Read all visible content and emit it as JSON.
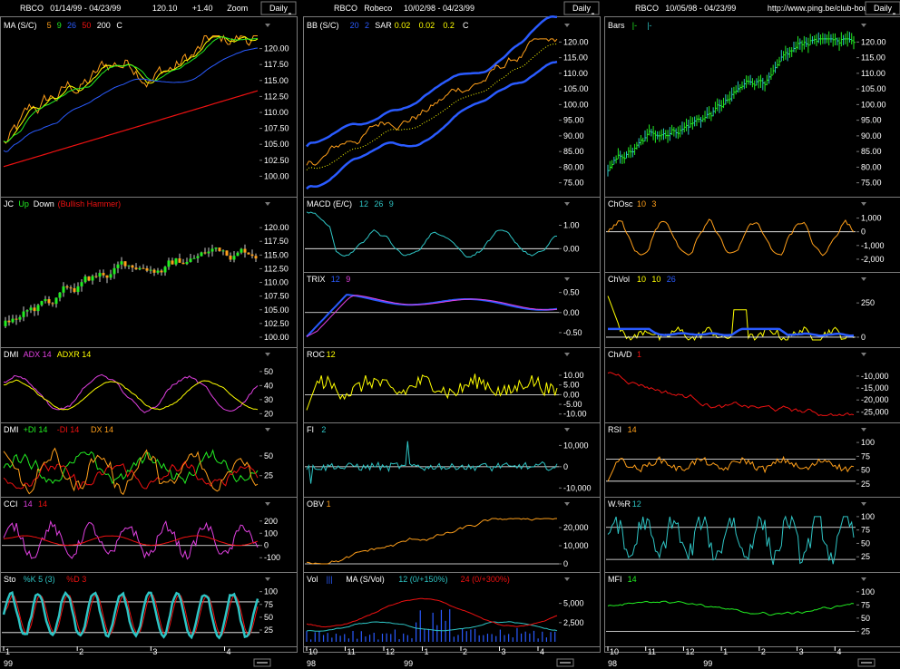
{
  "colors": {
    "bg": "#000000",
    "frame": "#7a7a7a",
    "text": "#ffffff",
    "orange": "#ff9f1a",
    "yellow": "#ffff00",
    "green": "#22ee22",
    "red": "#ee1111",
    "blue": "#2a5bff",
    "cyan": "#2ec4c4",
    "magenta": "#e040e0",
    "pink": "#ff55aa"
  },
  "columns": [
    {
      "header": {
        "symbol": "RBCO",
        "period": "01/14/99 - 04/23/99",
        "price": "120.10",
        "change": "+1.40",
        "mode": "Zoom",
        "interval": "Daily"
      },
      "date_labels": [
        "1",
        "2",
        "3",
        "4"
      ],
      "year_label": "99"
    },
    {
      "header": {
        "symbol": "RBCO",
        "name": "Robeco",
        "period": "10/02/98 - 04/23/99",
        "interval": "Daily"
      },
      "date_labels": [
        "10",
        "11",
        "12",
        "1",
        "2",
        "3",
        "4"
      ],
      "year_labels": [
        "98",
        "99"
      ]
    },
    {
      "header": {
        "symbol": "RBCO",
        "period": "10/05/98 - 04/23/99",
        "url": "http://www.ping.be/club-bourse",
        "interval": "Daily"
      },
      "date_labels": [
        "10",
        "11",
        "12",
        "1",
        "2",
        "3",
        "4"
      ],
      "year_labels": [
        "98",
        "99"
      ]
    }
  ],
  "chart_data": [
    {
      "type": "line",
      "panel": "MA (S/C)",
      "legend": [
        "MA (S/C)",
        "5",
        "9",
        "26",
        "50",
        "200",
        "C"
      ],
      "yticks": [
        "120.00",
        "117.50",
        "115.00",
        "112.50",
        "110.00",
        "107.50",
        "105.00",
        "102.50",
        "100.00"
      ],
      "ylim": [
        97.5,
        122.5
      ]
    },
    {
      "type": "line",
      "panel": "BB (S/C)",
      "legend": [
        "BB (S/C)",
        "20",
        "2",
        "SAR",
        "0.02",
        "0.02",
        "0.2",
        "C"
      ],
      "yticks": [
        "120.00",
        "115.00",
        "110.00",
        "105.00",
        "100.00",
        "95.00",
        "90.00",
        "85.00",
        "80.00",
        "75.00"
      ],
      "ylim": [
        72,
        123
      ]
    },
    {
      "type": "bar",
      "panel": "Bars",
      "legend": [
        "Bars",
        "|-",
        "|-"
      ],
      "yticks": [
        "120.00",
        "115.00",
        "110.00",
        "105.00",
        "100.00",
        "95.00",
        "90.00",
        "85.00",
        "80.00",
        "75.00"
      ],
      "ylim": [
        72,
        123
      ]
    },
    {
      "type": "bar",
      "panel": "JC",
      "legend": [
        "JC",
        "Up",
        "Down",
        "(Bullish Hammer)"
      ],
      "yticks": [
        "120.00",
        "117.50",
        "115.00",
        "112.50",
        "110.00",
        "107.50",
        "105.00",
        "102.50",
        "100.00"
      ],
      "ylim": [
        99,
        123
      ]
    },
    {
      "type": "line",
      "panel": "MACD (E/C)",
      "legend": [
        "MACD (E/C)",
        "12",
        "26",
        "9"
      ],
      "yticks": [
        "1.00",
        "0.00"
      ],
      "ylim": [
        -0.8,
        1.6
      ]
    },
    {
      "type": "line",
      "panel": "ChOsc",
      "legend": [
        "ChOsc",
        "10",
        "3"
      ],
      "yticks": [
        "1,000",
        "0",
        "-1,000",
        "-2,000"
      ],
      "ylim": [
        -2600,
        1500
      ]
    },
    {
      "type": "line",
      "panel": "TRIX",
      "legend": [
        "TRIX",
        "12",
        "9"
      ],
      "yticks": [
        "0.50",
        "0.00",
        "-0.50"
      ],
      "ylim": [
        -0.75,
        0.65
      ]
    },
    {
      "type": "line",
      "panel": "ChVol",
      "legend": [
        "ChVol",
        "10",
        "10",
        "26"
      ],
      "yticks": [
        "250",
        "0"
      ],
      "ylim": [
        -40,
        370
      ]
    },
    {
      "type": "line",
      "panel": "DMI",
      "legend": [
        "DMI",
        "ADX 14",
        "ADXR 14"
      ],
      "yticks": [
        "50",
        "40",
        "30",
        "20"
      ],
      "ylim": [
        17,
        57
      ]
    },
    {
      "type": "line",
      "panel": "ROC",
      "legend": [
        "ROC",
        "12"
      ],
      "yticks": [
        "10.00",
        "5.00",
        "0.00",
        "-5.00",
        "-10.00"
      ],
      "ylim": [
        -12,
        17
      ]
    },
    {
      "type": "line",
      "panel": "ChA/D",
      "legend": [
        "ChA/D",
        "1"
      ],
      "yticks": [
        "-10,000",
        "-15,000",
        "-20,000",
        "-25,000"
      ],
      "ylim": [
        -27500,
        -4000
      ]
    },
    {
      "type": "line",
      "panel": "DMI",
      "legend": [
        "DMI",
        "+DI 14",
        "-DI 14",
        "DX 14"
      ],
      "yticks": [
        "50",
        "25"
      ],
      "ylim": [
        4,
        74
      ]
    },
    {
      "type": "line",
      "panel": "FI",
      "legend": [
        "FI",
        "2"
      ],
      "yticks": [
        "10,000",
        "0",
        "-10,000"
      ],
      "ylim": [
        -12000,
        14000
      ]
    },
    {
      "type": "line",
      "panel": "RSI",
      "legend": [
        "RSI",
        "14"
      ],
      "yticks": [
        "100",
        "75",
        "50",
        "25"
      ],
      "ylim": [
        10,
        110
      ]
    },
    {
      "type": "line",
      "panel": "CCI",
      "legend": [
        "CCI",
        "14",
        "14"
      ],
      "yticks": [
        "200",
        "100",
        "0",
        "-100"
      ],
      "ylim": [
        -180,
        280
      ]
    },
    {
      "type": "line",
      "panel": "OBV",
      "legend": [
        "OBV",
        "1"
      ],
      "yticks": [
        "20,000",
        "10,000",
        "0"
      ],
      "ylim": [
        -2000,
        29000
      ]
    },
    {
      "type": "line",
      "panel": "W.%R",
      "legend": [
        "W.%R",
        "12"
      ],
      "yticks": [
        "100",
        "75",
        "50",
        "25"
      ],
      "ylim": [
        5,
        110
      ]
    },
    {
      "type": "line",
      "panel": "Sto",
      "legend": [
        "Sto",
        "%K 5 (3)",
        "%D 3"
      ],
      "yticks": [
        "100",
        "75",
        "50",
        "25"
      ],
      "ylim": [
        2,
        110
      ]
    },
    {
      "type": "bar",
      "panel": "Vol",
      "legend": [
        "Vol",
        "|||",
        "MA (S/Vol)",
        "12 (0/+150%)",
        "24 (0/+300%)"
      ],
      "yticks": [
        "5,000",
        "2,500"
      ],
      "ylim": [
        0,
        7200
      ]
    },
    {
      "type": "line",
      "panel": "MFI",
      "legend": [
        "MFI",
        "14"
      ],
      "yticks": [
        "100",
        "75",
        "50",
        "25"
      ],
      "ylim": [
        5,
        110
      ]
    }
  ]
}
